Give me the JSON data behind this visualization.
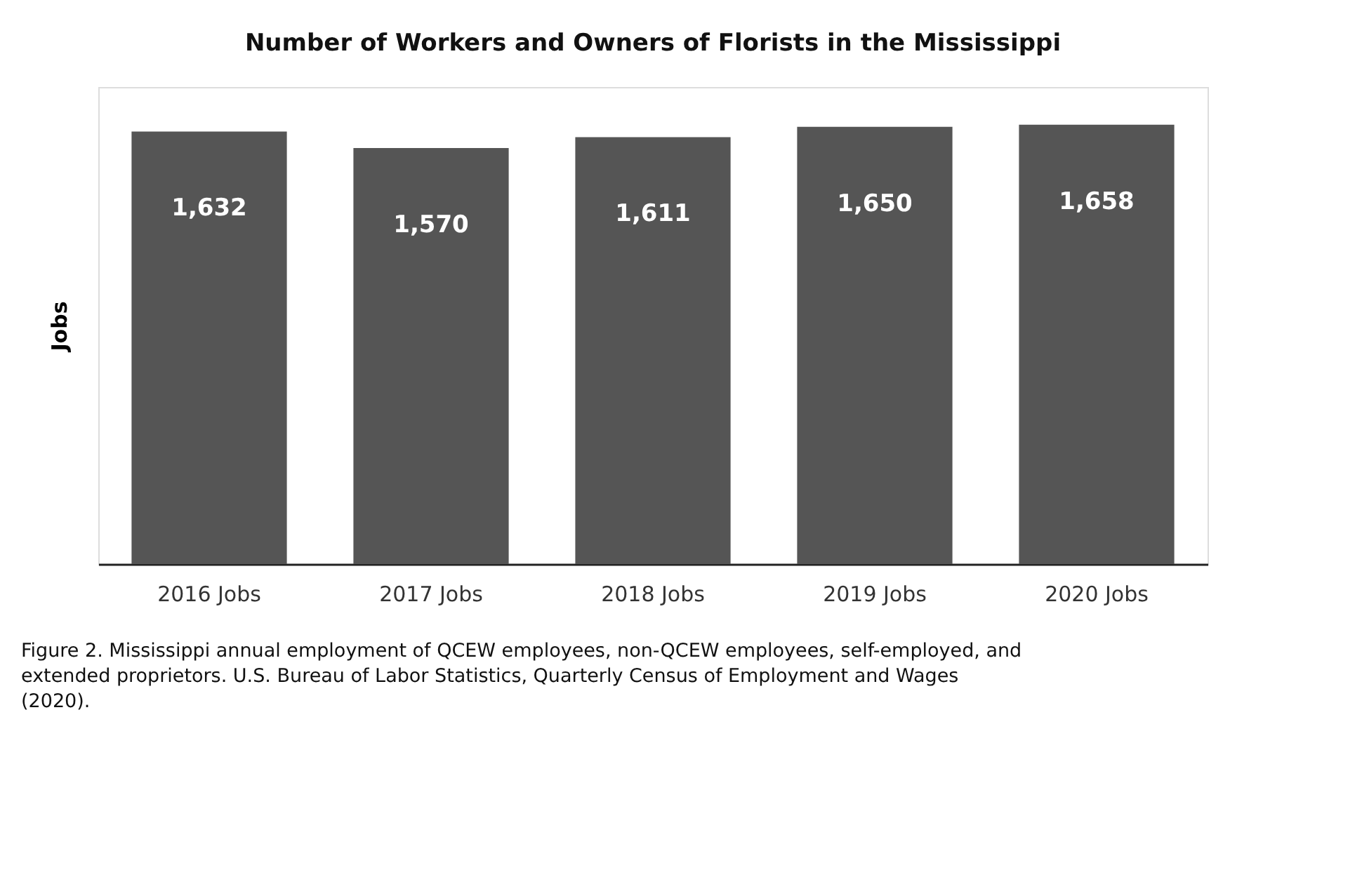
{
  "chart_data": {
    "type": "bar",
    "title": "Number of Workers and Owners of Florists in the Mississippi",
    "ylabel": "Jobs",
    "categories": [
      "2016 Jobs",
      "2017 Jobs",
      "2018 Jobs",
      "2019 Jobs",
      "2020 Jobs"
    ],
    "values": [
      1632,
      1570,
      1611,
      1650,
      1658
    ],
    "color": "#555555",
    "value_labels": [
      "1,632",
      "1,570",
      "1,611",
      "1,650",
      "1,658"
    ],
    "grid": false,
    "tick_labels": "x",
    "annotations": [
      "Figure 2. Mississippi annual employment of QCEW employees, non-QCEW employees, self-employed, and extended proprietors. U.S. Bureau of Labor Statistics, Quarterly Census of Employment and Wages (2020)."
    ]
  }
}
